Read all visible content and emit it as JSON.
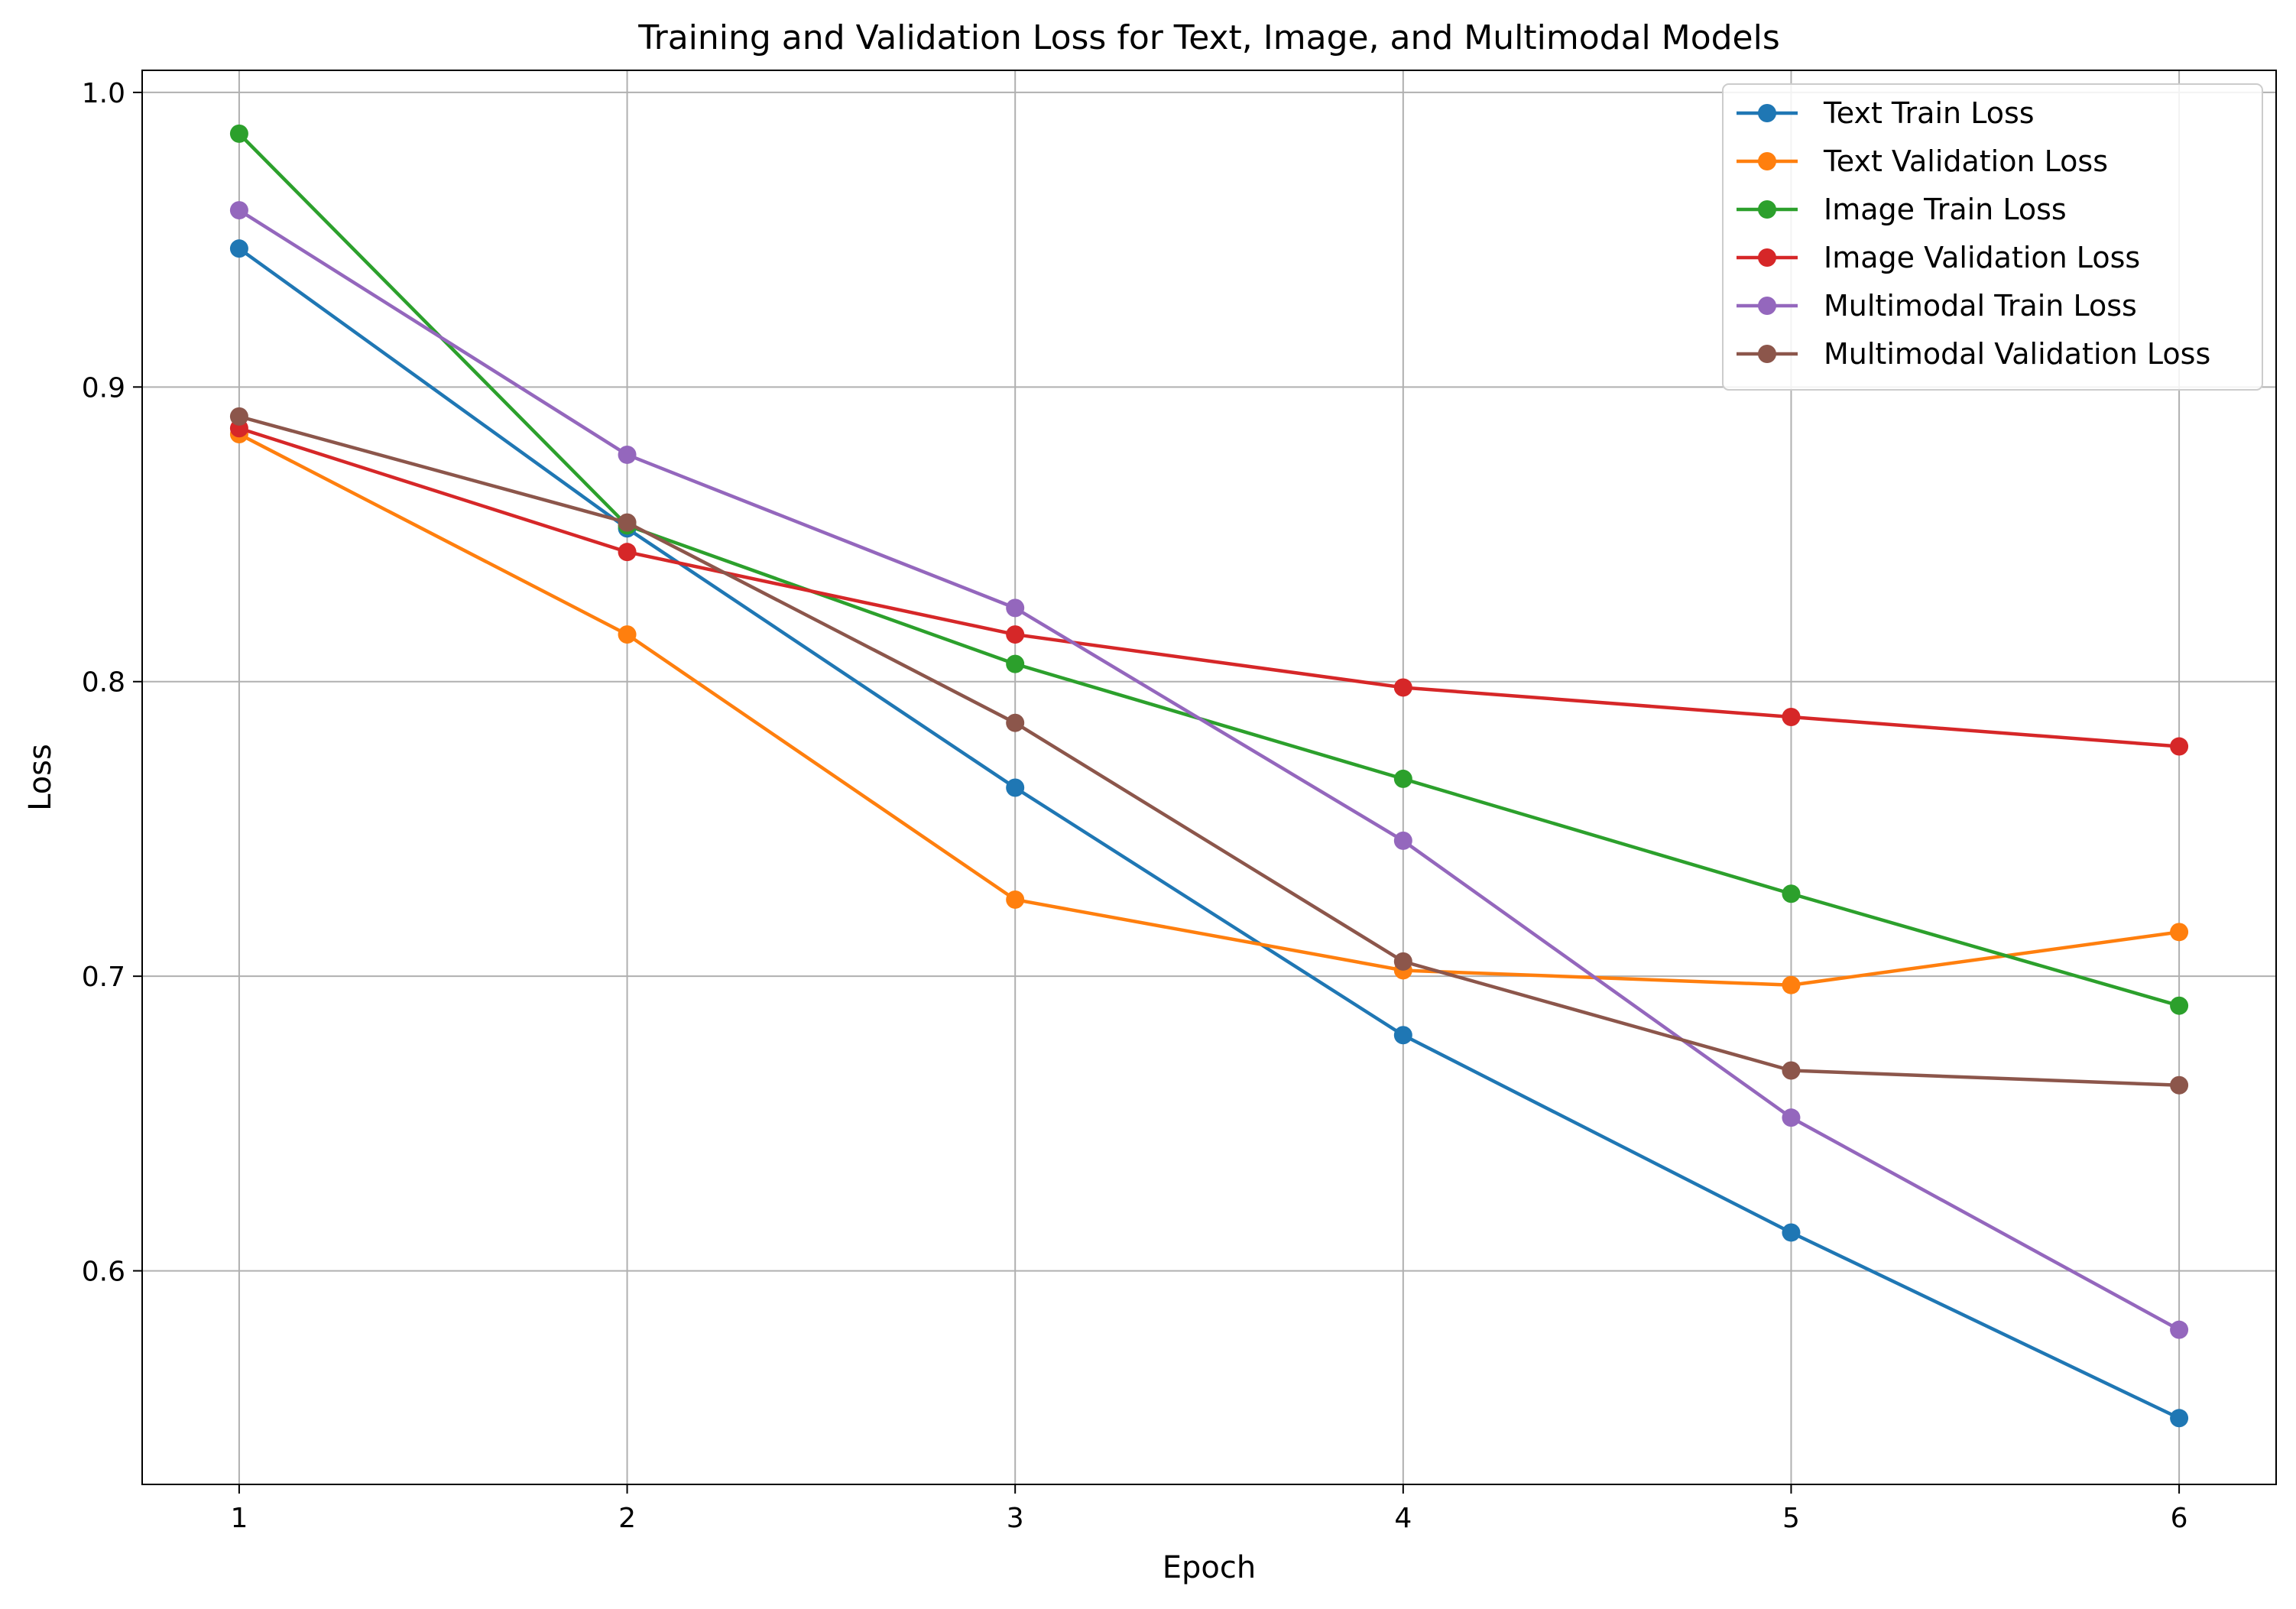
{
  "chart_data": {
    "type": "line",
    "title": "Training and Validation Loss for Text, Image, and Multimodal Models",
    "xlabel": "Epoch",
    "ylabel": "Loss",
    "x": [
      1,
      2,
      3,
      4,
      5,
      6
    ],
    "xlim": [
      0.75,
      6.25
    ],
    "ylim": [
      0.5275,
      1.0075
    ],
    "xticks": [
      "1",
      "2",
      "3",
      "4",
      "5",
      "6"
    ],
    "yticks": [
      "0.6",
      "0.7",
      "0.8",
      "0.9",
      "1.0"
    ],
    "grid": true,
    "legend_position": "top-right",
    "series": [
      {
        "name": "Text Train Loss",
        "color": "#1f77b4",
        "values": [
          0.947,
          0.852,
          0.764,
          0.68,
          0.613,
          0.55
        ]
      },
      {
        "name": "Text Validation Loss",
        "color": "#ff7f0e",
        "values": [
          0.884,
          0.816,
          0.726,
          0.702,
          0.697,
          0.715
        ]
      },
      {
        "name": "Image Train Loss",
        "color": "#2ca02c",
        "values": [
          0.986,
          0.853,
          0.806,
          0.767,
          0.728,
          0.69
        ]
      },
      {
        "name": "Image Validation Loss",
        "color": "#d62728",
        "values": [
          0.886,
          0.844,
          0.816,
          0.798,
          0.788,
          0.778
        ]
      },
      {
        "name": "Multimodal Train Loss",
        "color": "#9467bd",
        "values": [
          0.96,
          0.877,
          0.825,
          0.746,
          0.652,
          0.58
        ]
      },
      {
        "name": "Multimodal Validation Loss",
        "color": "#8c564b",
        "values": [
          0.89,
          0.854,
          0.786,
          0.705,
          0.668,
          0.663
        ]
      }
    ]
  }
}
